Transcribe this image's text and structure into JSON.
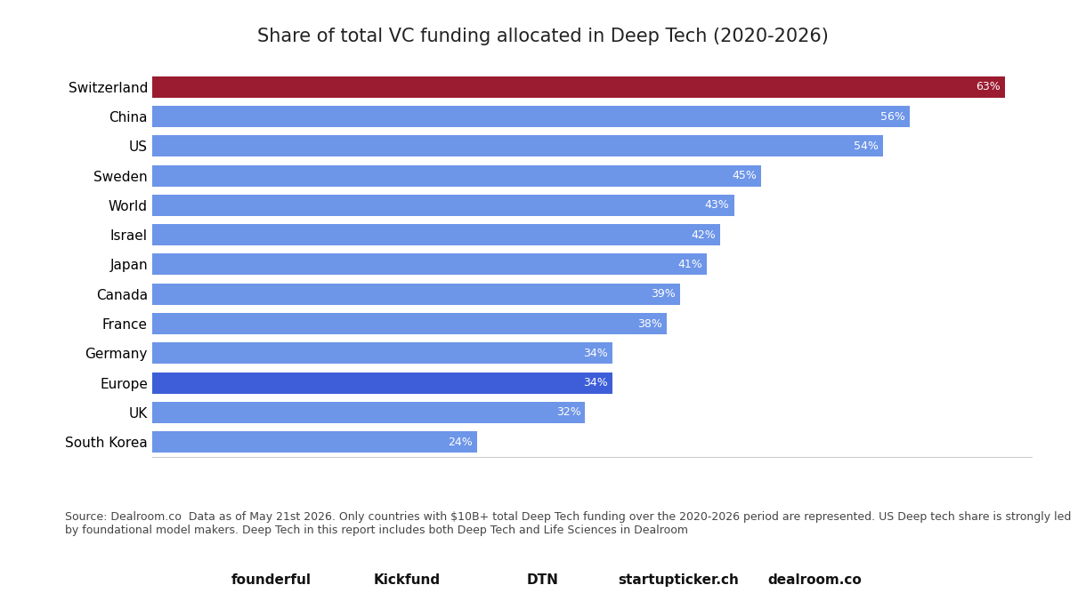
{
  "chart_data": {
    "type": "bar",
    "orientation": "horizontal",
    "title": "Share of total VC funding allocated in Deep Tech (2020-2026)",
    "categories": [
      "Switzerland",
      "China",
      "US",
      "Sweden",
      "World",
      "Israel",
      "Japan",
      "Canada",
      "France",
      "Germany",
      "Europe",
      "UK",
      "South Korea"
    ],
    "values": [
      63,
      56,
      54,
      45,
      43,
      42,
      41,
      39,
      38,
      34,
      34,
      32,
      24
    ],
    "value_labels": [
      "63%",
      "56%",
      "54%",
      "45%",
      "43%",
      "42%",
      "41%",
      "39%",
      "38%",
      "34%",
      "34%",
      "32%",
      "24%"
    ],
    "colors": [
      "#9b1b30",
      "#6d95e8",
      "#6d95e8",
      "#6d95e8",
      "#6d95e8",
      "#6d95e8",
      "#6d95e8",
      "#6d95e8",
      "#6d95e8",
      "#6d95e8",
      "#3d5ed8",
      "#6d95e8",
      "#6d95e8"
    ],
    "xlim": [
      0,
      65
    ],
    "xticks": [],
    "data_labels": true,
    "tick_labels": "y",
    "grid": false,
    "source": "Source: Dealroom.co  Data as of May 21st 2026. Only countries with $10B+ total Deep Tech funding over the 2020-2026 period are represented. US Deep tech share is strongly led by foundational model makers. Deep Tech in this report includes both Deep Tech and Life Sciences in Dealroom",
    "footer": [
      "founderful",
      "Kickfund",
      "DTN",
      "startupticker.ch",
      "dealroom.co"
    ]
  }
}
